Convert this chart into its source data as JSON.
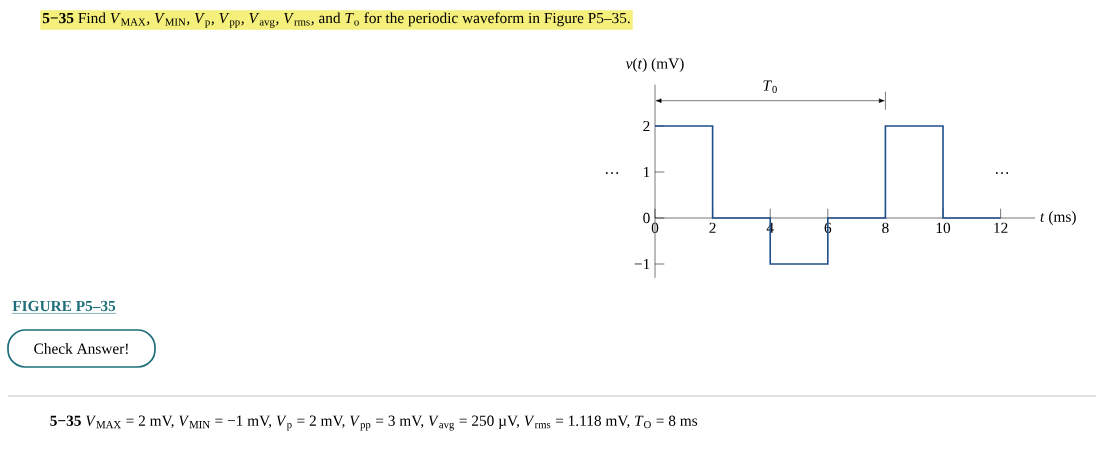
{
  "chart_data": {
    "type": "step",
    "title": "**5−35** Find *V*$_{MAX}$, *V*$_{MIN}$, *V*$_{p}$, *V*$_{pp}$, *V*$_{avg}$, *V*$_{rms}$, and *T*$_{o}$ for the periodic waveform in Figure P5–35.",
    "xlabel": "*t* (ms)",
    "ylabel": "*v*(*t*) (mV)",
    "x": [
      0,
      2,
      4,
      6,
      8,
      10,
      12
    ],
    "values": [
      2,
      2,
      0,
      -1,
      0,
      2,
      0
    ],
    "color": "#1f4e8c",
    "xlim": [
      0,
      13.2
    ],
    "ylim": [
      -1.3,
      2.9
    ],
    "xticks": [
      0,
      2,
      4,
      6,
      8,
      10,
      12
    ],
    "yticks": [
      {
        "value": -1,
        "label": "−1"
      },
      0,
      1,
      2
    ],
    "annotations": [
      "…",
      "…",
      "FIGURE P5–35",
      "Check Answer!",
      "**5−35** *V*$_{MAX}$ = 2 mV, *V*$_{MIN}$ = −1 mV, *V*$_{p}$ = 2 mV, *V*$_{pp}$ = 3 mV, *V*$_{avg}$ = 250 µV, *V*$_{rms}$ = 1.118 mV, *T*$_{O}$ = 8 ms",
      "*T*$_{0}$"
    ]
  }
}
